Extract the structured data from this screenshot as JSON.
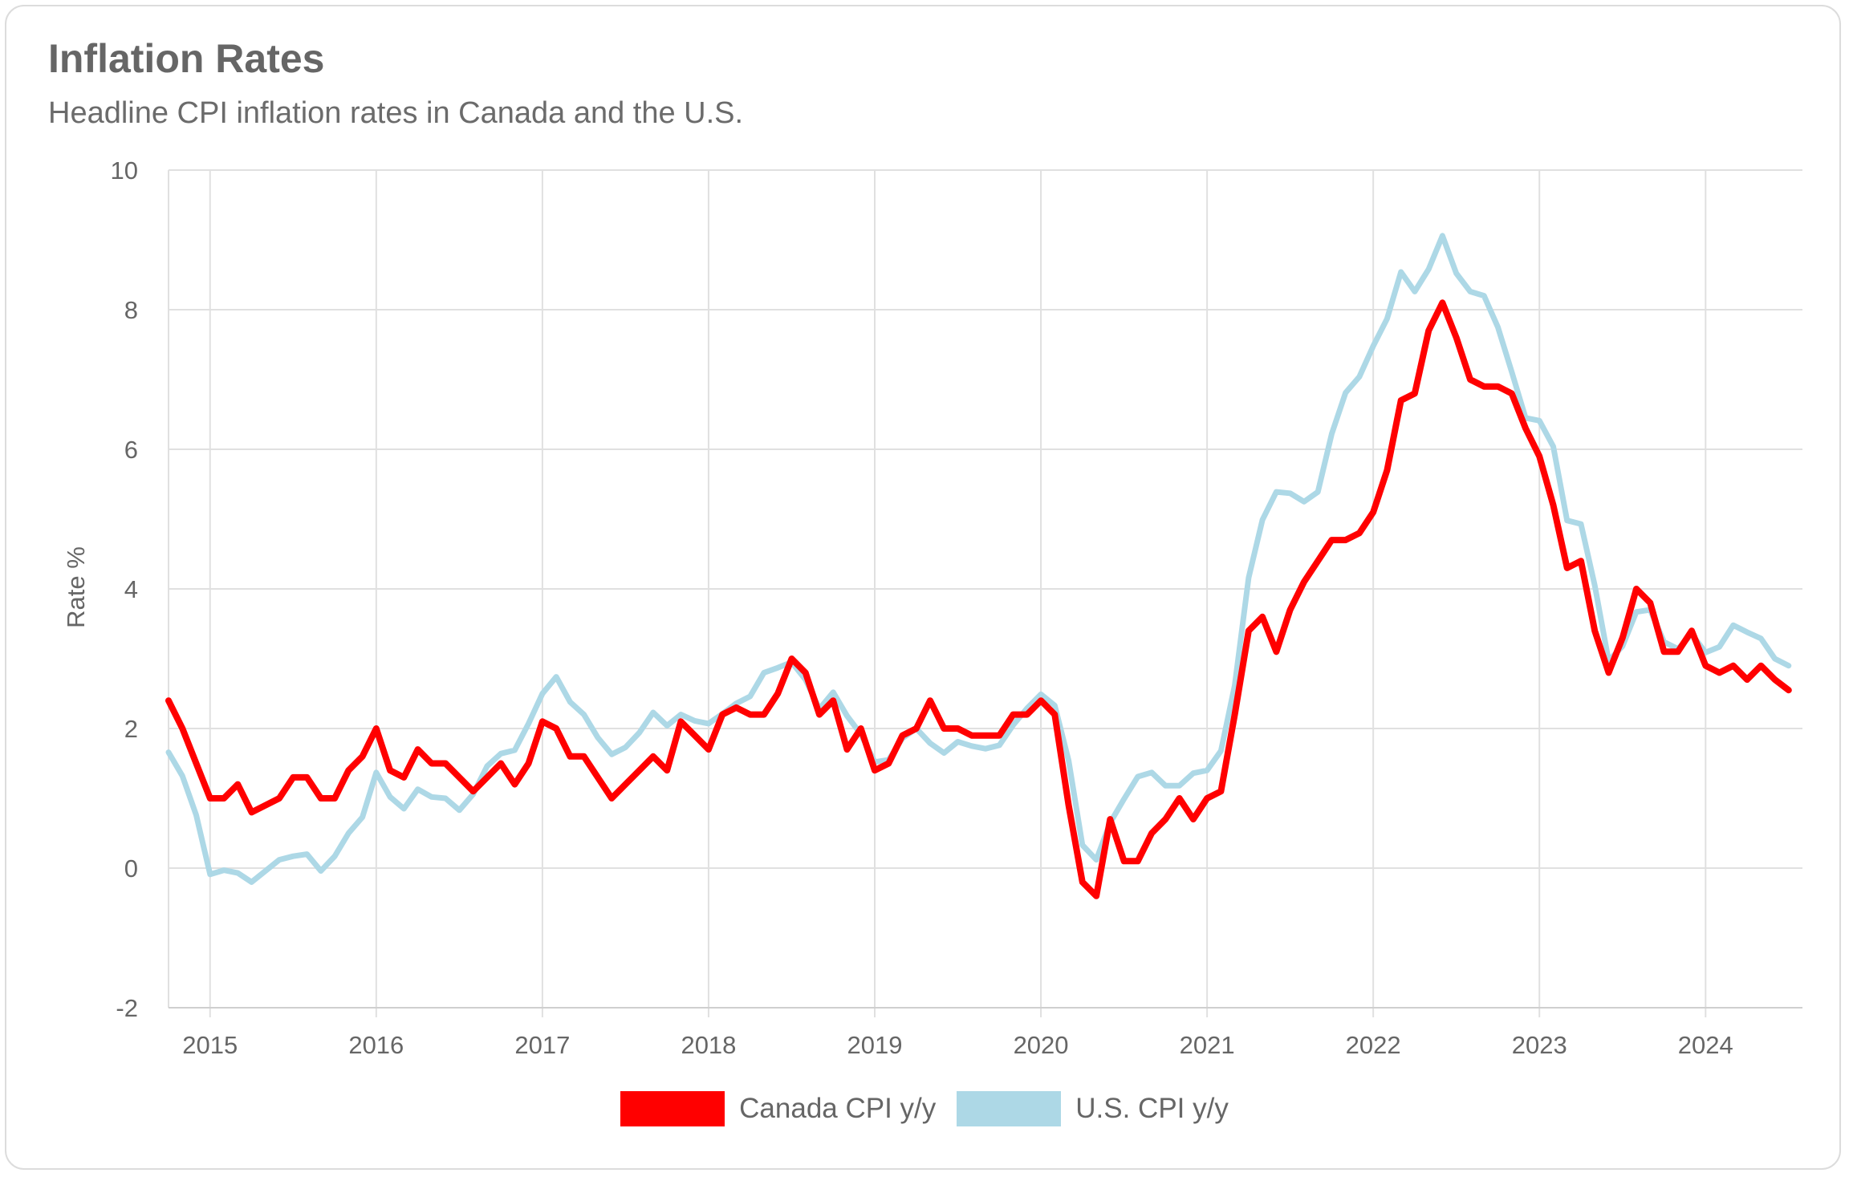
{
  "header": {
    "title": "Inflation Rates",
    "subtitle": "Headline CPI inflation rates in Canada and the U.S."
  },
  "colors": {
    "canada": "#ff0000",
    "us": "#add8e6",
    "grid": "#e0e0e0",
    "text": "#666666"
  },
  "chart_data": {
    "type": "line",
    "title": "Inflation Rates",
    "subtitle": "Headline CPI inflation rates in Canada and the U.S.",
    "xlabel": "",
    "ylabel": "Rate %",
    "ylim": [
      -2,
      10
    ],
    "yticks": [
      -2,
      0,
      2,
      4,
      6,
      8,
      10
    ],
    "xlim": [
      2014.75,
      2024.583
    ],
    "xticks": [
      "2015",
      "2016",
      "2017",
      "2018",
      "2019",
      "2020",
      "2021",
      "2022",
      "2023",
      "2024"
    ],
    "x_start": "2014-10",
    "x_step": "monthly",
    "grid": true,
    "legend_position": "bottom-center",
    "series": [
      {
        "name": "Canada CPI y/y",
        "color": "#ff0000",
        "values": [
          2.4,
          2.0,
          1.5,
          1.0,
          1.0,
          1.2,
          0.8,
          0.9,
          1.0,
          1.3,
          1.3,
          1.0,
          1.0,
          1.4,
          1.6,
          2.0,
          1.4,
          1.3,
          1.7,
          1.5,
          1.5,
          1.3,
          1.1,
          1.3,
          1.5,
          1.2,
          1.5,
          2.1,
          2.0,
          1.6,
          1.6,
          1.3,
          1.0,
          1.2,
          1.4,
          1.6,
          1.4,
          2.1,
          1.9,
          1.7,
          2.2,
          2.3,
          2.2,
          2.2,
          2.5,
          3.0,
          2.8,
          2.2,
          2.4,
          1.7,
          2.0,
          1.4,
          1.5,
          1.9,
          2.0,
          2.4,
          2.0,
          2.0,
          1.9,
          1.9,
          1.9,
          2.2,
          2.2,
          2.4,
          2.2,
          0.9,
          -0.2,
          -0.4,
          0.7,
          0.1,
          0.1,
          0.5,
          0.7,
          1.0,
          0.7,
          1.0,
          1.1,
          2.2,
          3.4,
          3.6,
          3.1,
          3.7,
          4.1,
          4.4,
          4.7,
          4.7,
          4.8,
          5.1,
          5.7,
          6.7,
          6.8,
          7.7,
          8.1,
          7.6,
          7.0,
          6.9,
          6.9,
          6.8,
          6.3,
          5.9,
          5.2,
          4.3,
          4.4,
          3.4,
          2.8,
          3.3,
          4.0,
          3.8,
          3.1,
          3.1,
          3.4,
          2.9,
          2.8,
          2.9,
          2.7,
          2.9,
          2.7,
          2.55
        ]
      },
      {
        "name": "U.S. CPI y/y",
        "color": "#add8e6",
        "values": [
          1.66,
          1.32,
          0.76,
          -0.09,
          -0.03,
          -0.07,
          -0.2,
          -0.04,
          0.12,
          0.17,
          0.2,
          -0.04,
          0.17,
          0.5,
          0.73,
          1.37,
          1.02,
          0.85,
          1.13,
          1.02,
          1.0,
          0.83,
          1.06,
          1.46,
          1.64,
          1.69,
          2.07,
          2.5,
          2.74,
          2.38,
          2.2,
          1.87,
          1.63,
          1.73,
          1.94,
          2.23,
          2.04,
          2.2,
          2.11,
          2.07,
          2.21,
          2.36,
          2.46,
          2.8,
          2.87,
          2.95,
          2.7,
          2.28,
          2.52,
          2.18,
          1.92,
          1.52,
          1.55,
          1.86,
          2.0,
          1.79,
          1.65,
          1.81,
          1.75,
          1.71,
          1.76,
          2.05,
          2.29,
          2.49,
          2.33,
          1.54,
          0.33,
          0.12,
          0.65,
          0.99,
          1.31,
          1.37,
          1.18,
          1.18,
          1.36,
          1.4,
          1.68,
          2.62,
          4.16,
          4.99,
          5.39,
          5.37,
          5.25,
          5.39,
          6.22,
          6.81,
          7.04,
          7.48,
          7.87,
          8.54,
          8.26,
          8.58,
          9.06,
          8.52,
          8.26,
          8.2,
          7.75,
          7.11,
          6.45,
          6.41,
          6.04,
          4.98,
          4.93,
          4.05,
          2.97,
          3.18,
          3.67,
          3.7,
          3.24,
          3.14,
          3.35,
          3.09,
          3.17,
          3.48,
          3.38,
          3.29,
          3.0,
          2.9
        ]
      }
    ]
  }
}
